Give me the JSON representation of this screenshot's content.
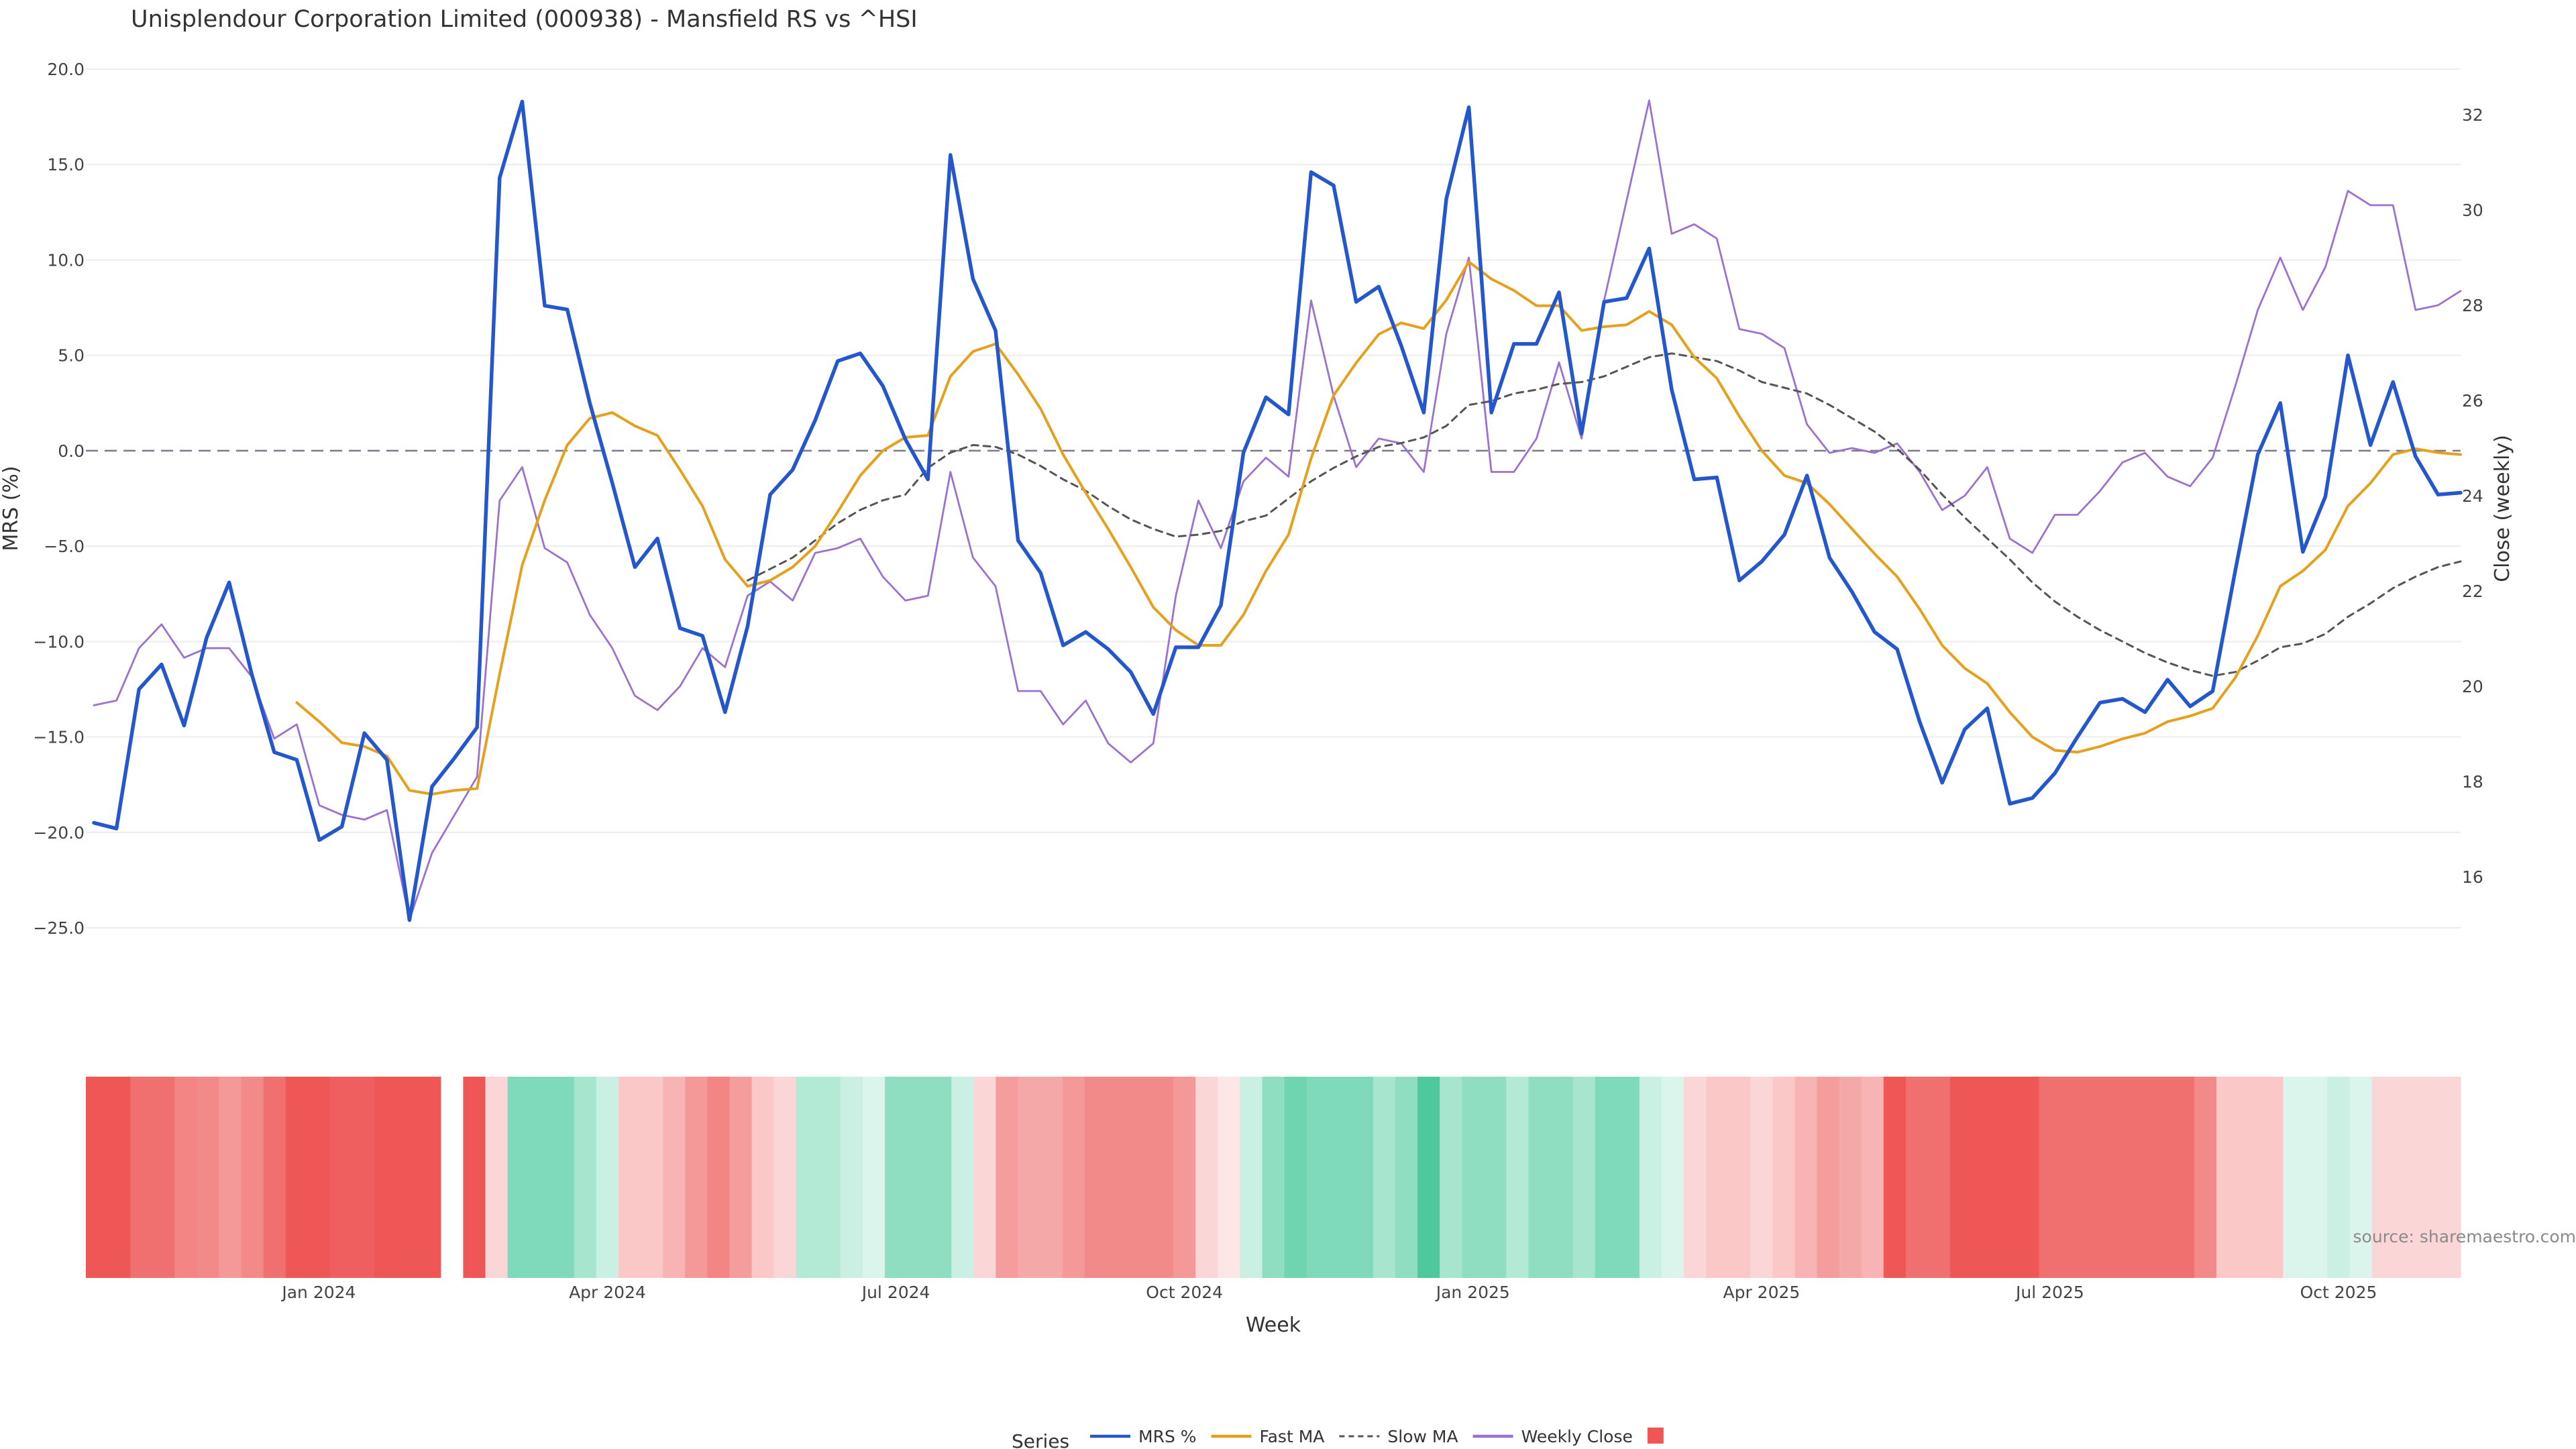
{
  "chart_data": {
    "type": "line",
    "title": "Unisplendour Corporation Limited (000938) - Mansfield RS vs ^HSI",
    "xlabel": "Week",
    "ylabel": "MRS (%)",
    "ylabel_right": "Close (weekly)",
    "source": "source: sharemaestro.com",
    "ylim": [
      -26.5,
      20.5
    ],
    "ylim_right": [
      13.0,
      33.0
    ],
    "left_ticks": [
      "20.0",
      "15.0",
      "10.0",
      "5.0",
      "0.0",
      "−5.0",
      "−10.0",
      "−15.0",
      "−20.0",
      "−25.0"
    ],
    "left_tick_values": [
      20,
      15,
      10,
      5,
      0,
      -5,
      -10,
      -15,
      -20,
      -25
    ],
    "right_ticks": [
      "32",
      "30",
      "28",
      "26",
      "24",
      "22",
      "20",
      "18",
      "16"
    ],
    "right_tick_values": [
      32,
      30,
      28,
      26,
      24,
      22,
      20,
      18,
      16
    ],
    "x_ticks": [
      "Jan 2024",
      "Apr 2024",
      "Jul 2024",
      "Oct 2024",
      "Jan 2025",
      "Apr 2025",
      "Jul 2025",
      "Oct 2025"
    ],
    "x_tick_weeks": [
      10,
      23,
      36,
      49,
      62,
      75,
      88,
      101
    ],
    "reference_line": 0,
    "grid": true,
    "legend_title": "Series",
    "legend_position": "bottom",
    "heatmap_gap_weeks": [
      16
    ],
    "series": [
      {
        "name": "MRS %",
        "color": "#2457cc",
        "axis": "left",
        "values": [
          -19.5,
          -19.8,
          -12.5,
          -11.2,
          -14.4,
          -9.8,
          -6.9,
          -11.7,
          -15.8,
          -16.2,
          -20.4,
          -19.7,
          -14.8,
          -16.2,
          -24.6,
          -17.6,
          -16.1,
          -14.5,
          14.3,
          18.3,
          7.6,
          7.4,
          2.5,
          -1.7,
          -6.1,
          -4.6,
          -9.3,
          -9.7,
          -13.7,
          -9.2,
          -2.3,
          -1.0,
          1.6,
          4.7,
          5.1,
          3.4,
          0.6,
          -1.5,
          15.5,
          9.0,
          6.3,
          -4.7,
          -6.4,
          -10.2,
          -9.5,
          -10.4,
          -11.6,
          -13.8,
          -10.3,
          -10.3,
          -8.1,
          -0.1,
          2.8,
          1.9,
          14.6,
          13.9,
          7.8,
          8.6,
          5.5,
          2.0,
          13.2,
          18.0,
          2.0,
          5.6,
          5.6,
          8.3,
          0.9,
          7.8,
          8.0,
          10.6,
          3.2,
          -1.5,
          -1.4,
          -6.8,
          -5.8,
          -4.4,
          -1.3,
          -5.6,
          -7.4,
          -9.5,
          -10.4,
          -14.2,
          -17.4,
          -14.6,
          -13.5,
          -18.5,
          -18.2,
          -16.9,
          -15.0,
          -13.2,
          -13.0,
          -13.7,
          -12.0,
          -13.4,
          -12.6,
          -6.3,
          -0.2,
          2.5,
          -5.3,
          -2.4,
          5.0,
          0.3,
          3.6,
          -0.3,
          -2.3,
          -2.2
        ]
      },
      {
        "name": "Fast MA",
        "color": "#e5a11e",
        "axis": "left",
        "values": [
          null,
          null,
          null,
          null,
          null,
          null,
          null,
          null,
          null,
          -13.2,
          -14.2,
          -15.3,
          -15.5,
          -16.0,
          -17.8,
          -18.0,
          -17.8,
          -17.7,
          -11.7,
          -6.0,
          -2.6,
          0.3,
          1.7,
          2.0,
          1.3,
          0.8,
          -1.0,
          -2.9,
          -5.7,
          -7.1,
          -6.8,
          -6.1,
          -5.0,
          -3.2,
          -1.3,
          0.0,
          0.7,
          0.8,
          3.9,
          5.2,
          5.6,
          4.0,
          2.2,
          -0.2,
          -2.2,
          -4.1,
          -6.1,
          -8.2,
          -9.4,
          -10.2,
          -10.2,
          -8.6,
          -6.3,
          -4.4,
          -0.4,
          2.9,
          4.6,
          6.1,
          6.7,
          6.4,
          7.9,
          9.9,
          9.0,
          8.4,
          7.6,
          7.6,
          6.3,
          6.5,
          6.6,
          7.3,
          6.6,
          4.9,
          3.8,
          1.8,
          0.0,
          -1.3,
          -1.7,
          -2.8,
          -4.1,
          -5.4,
          -6.6,
          -8.3,
          -10.2,
          -11.4,
          -12.2,
          -13.7,
          -15.0,
          -15.7,
          -15.8,
          -15.5,
          -15.1,
          -14.8,
          -14.2,
          -13.9,
          -13.5,
          -11.9,
          -9.7,
          -7.1,
          -6.3,
          -5.2,
          -2.9,
          -1.7,
          -0.2,
          0.1,
          -0.1,
          -0.2
        ]
      },
      {
        "name": "Slow MA",
        "color": "#555555",
        "axis": "left",
        "dash": "10,8",
        "values": [
          null,
          null,
          null,
          null,
          null,
          null,
          null,
          null,
          null,
          null,
          null,
          null,
          null,
          null,
          null,
          null,
          null,
          null,
          null,
          null,
          null,
          null,
          null,
          null,
          null,
          null,
          null,
          null,
          null,
          -6.8,
          -6.2,
          -5.6,
          -4.7,
          -3.8,
          -3.1,
          -2.6,
          -2.3,
          -0.9,
          -0.1,
          0.3,
          0.2,
          -0.2,
          -0.8,
          -1.5,
          -2.1,
          -2.9,
          -3.6,
          -4.1,
          -4.5,
          -4.4,
          -4.2,
          -3.7,
          -3.4,
          -2.5,
          -1.6,
          -0.9,
          -0.3,
          0.2,
          0.4,
          0.7,
          1.3,
          2.4,
          2.6,
          3.0,
          3.2,
          3.5,
          3.6,
          3.9,
          4.4,
          4.9,
          5.1,
          4.9,
          4.7,
          4.2,
          3.6,
          3.3,
          3.0,
          2.4,
          1.7,
          1.0,
          0.1,
          -1.0,
          -2.3,
          -3.5,
          -4.6,
          -5.7,
          -6.9,
          -7.9,
          -8.7,
          -9.4,
          -10.0,
          -10.6,
          -11.1,
          -11.5,
          -11.8,
          -11.6,
          -11.0,
          -10.3,
          -10.1,
          -9.6,
          -8.7,
          -8.0,
          -7.2,
          -6.6,
          -6.1,
          -5.8
        ]
      },
      {
        "name": "Weekly Close",
        "color": "#9b72cf",
        "axis": "right",
        "values": [
          19.6,
          19.7,
          20.8,
          21.3,
          20.6,
          20.8,
          20.8,
          20.2,
          18.9,
          19.2,
          17.5,
          17.3,
          17.2,
          17.4,
          15.1,
          16.5,
          17.3,
          18.1,
          23.9,
          24.6,
          22.9,
          22.6,
          21.5,
          20.8,
          19.8,
          19.5,
          20.0,
          20.8,
          20.4,
          21.9,
          22.2,
          21.8,
          22.8,
          22.9,
          23.1,
          22.3,
          21.8,
          21.9,
          24.5,
          22.7,
          22.1,
          19.9,
          19.9,
          19.2,
          19.7,
          18.8,
          18.4,
          18.8,
          21.9,
          23.9,
          22.9,
          24.3,
          24.8,
          24.4,
          28.1,
          26.1,
          24.6,
          25.2,
          25.1,
          24.5,
          27.4,
          29.0,
          24.5,
          24.5,
          25.2,
          26.8,
          25.2,
          28.1,
          30.2,
          32.3,
          29.5,
          29.7,
          29.4,
          27.5,
          27.4,
          27.1,
          25.5,
          24.9,
          25.0,
          24.9,
          25.1,
          24.5,
          23.7,
          24.0,
          24.6,
          23.1,
          22.8,
          23.6,
          23.6,
          24.1,
          24.7,
          24.9,
          24.4,
          24.2,
          24.8,
          26.3,
          27.9,
          29.0,
          27.9,
          28.8,
          30.4,
          30.1,
          30.1,
          27.9,
          28.0,
          28.3
        ]
      }
    ],
    "heatmap_colors": [
      "#ef5656",
      "#ef5656",
      "#f07070",
      "#f07070",
      "#f38585",
      "#f38a8a",
      "#f59898",
      "#f38a8a",
      "#f07070",
      "#ef5656",
      "#ef5656",
      "#f05f5f",
      "#f05f5f",
      "#ef5656",
      "#ef5656",
      "#ef5656",
      "#ffffff",
      "#ef5656",
      "#fbd6d6",
      "#7fd9bb",
      "#7fd9bb",
      "#7fd9bb",
      "#a7e5cf",
      "#c9f0e2",
      "#fbc8c8",
      "#fbc8c8",
      "#f8b4b4",
      "#f59898",
      "#f38585",
      "#f59c9c",
      "#fbc8c8",
      "#fbd6d6",
      "#b3ead6",
      "#b3ead6",
      "#c9f0e2",
      "#dcf5ec",
      "#8fdec2",
      "#8fdec2",
      "#8fdec2",
      "#c9f0e2",
      "#fbd6d6",
      "#f59c9c",
      "#f5a8a8",
      "#f5a8a8",
      "#f59898",
      "#f38a8a",
      "#f38a8a",
      "#f38a8a",
      "#f38a8a",
      "#f59898",
      "#fbd6d6",
      "#fde6e6",
      "#c9f0e2",
      "#8fdec2",
      "#6fd4b0",
      "#7fd9bb",
      "#7fd9bb",
      "#7fd9bb",
      "#a7e5cf",
      "#8fdec2",
      "#4ec99e",
      "#a7e5cf",
      "#8fdec2",
      "#8fdec2",
      "#b3ead6",
      "#8fdec2",
      "#8fdec2",
      "#a7e5cf",
      "#7fd9bb",
      "#7fd9bb",
      "#c9f0e2",
      "#dcf5ec",
      "#fbd6d6",
      "#fbc8c8",
      "#fbc8c8",
      "#fbd6d6",
      "#fbc8c8",
      "#f8b4b4",
      "#f59c9c",
      "#f5a8a8",
      "#f8b4b4",
      "#ef5656",
      "#f07070",
      "#f07070",
      "#ef5656",
      "#ef5656",
      "#ef5656",
      "#ef5656",
      "#f07070",
      "#f07070",
      "#f07070",
      "#f07070",
      "#f07070",
      "#f07070",
      "#f07070",
      "#f38a8a",
      "#fbc8c8",
      "#fbc8c8",
      "#fbc8c8",
      "#dcf5ec",
      "#dcf5ec",
      "#c9f0e2",
      "#dcf5ec",
      "#fbd6d6",
      "#fbd6d6",
      "#fbd6d6",
      "#fbd6d6"
    ],
    "legend": [
      {
        "label": "MRS %",
        "style": "line",
        "color": "#2457cc"
      },
      {
        "label": "Fast MA",
        "style": "line",
        "color": "#e5a11e"
      },
      {
        "label": "Slow MA",
        "style": "dash",
        "color": "#555555"
      },
      {
        "label": "Weekly Close",
        "style": "line",
        "color": "#9b72cf"
      },
      {
        "label": "",
        "style": "swatch",
        "color": "#ef5656"
      }
    ]
  }
}
